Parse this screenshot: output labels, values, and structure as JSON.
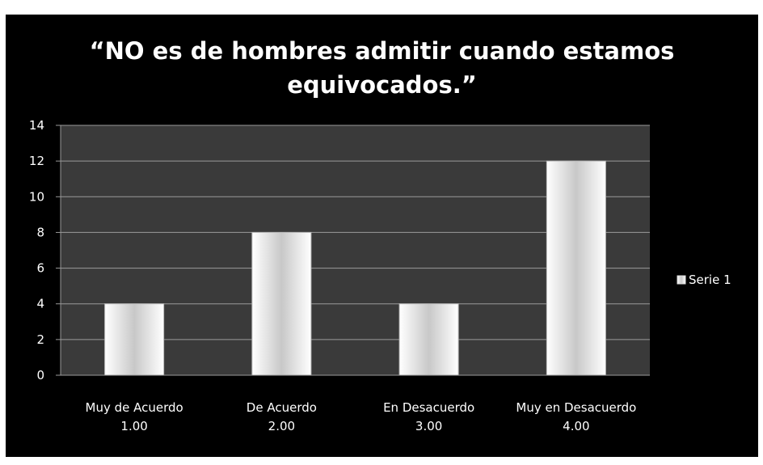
{
  "chart_data": {
    "type": "bar",
    "title_lines": [
      "“NO es de hombres admitir cuando estamos",
      "equivocados.”"
    ],
    "categories": [
      [
        "Muy de Acuerdo",
        "1.00"
      ],
      [
        "De Acuerdo",
        "2.00"
      ],
      [
        "En Desacuerdo",
        "3.00"
      ],
      [
        "Muy en Desacuerdo",
        "4.00"
      ]
    ],
    "series": [
      {
        "name": "Serie 1",
        "values": [
          4,
          8,
          4,
          12
        ]
      }
    ],
    "ylim": [
      0,
      14
    ],
    "yticks": [
      "0",
      "2",
      "4",
      "6",
      "8",
      "10",
      "12",
      "14"
    ],
    "grid": true,
    "legend_position": "right",
    "colors": {
      "background": "#000000",
      "plot_area": "#3a3a3a",
      "gridline": "#9a9a9a",
      "bar_edge": "#ffffff",
      "bar_center": "#c8c8c8",
      "text": "#ffffff"
    }
  }
}
